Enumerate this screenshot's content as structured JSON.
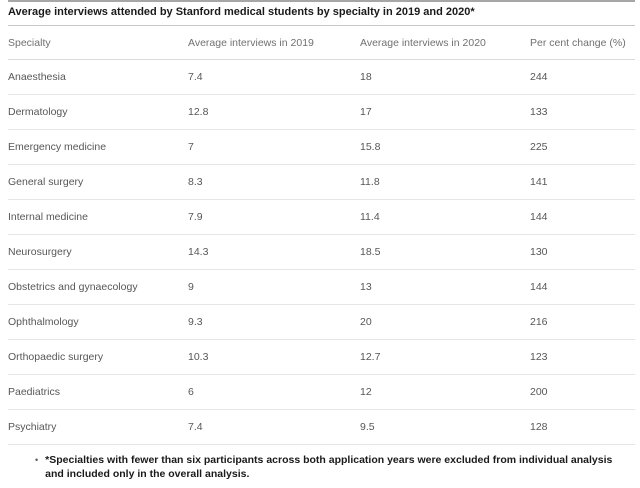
{
  "chart_data": {
    "type": "table",
    "title": "Average interviews attended by Stanford medical students by specialty in 2019 and 2020*",
    "columns": [
      "Specialty",
      "Average interviews in 2019",
      "Average interviews in 2020",
      "Per cent change (%)"
    ],
    "rows": [
      [
        "Anaesthesia",
        "7.4",
        "18",
        "244"
      ],
      [
        "Dermatology",
        "12.8",
        "17",
        "133"
      ],
      [
        "Emergency medicine",
        "7",
        "15.8",
        "225"
      ],
      [
        "General surgery",
        "8.3",
        "11.8",
        "141"
      ],
      [
        "Internal medicine",
        "7.9",
        "11.4",
        "144"
      ],
      [
        "Neurosurgery",
        "14.3",
        "18.5",
        "130"
      ],
      [
        "Obstetrics and gynaecology",
        "9",
        "13",
        "144"
      ],
      [
        "Ophthalmology",
        "9.3",
        "20",
        "216"
      ],
      [
        "Orthopaedic surgery",
        "10.3",
        "12.7",
        "123"
      ],
      [
        "Paediatrics",
        "6",
        "12",
        "200"
      ],
      [
        "Psychiatry",
        "7.4",
        "9.5",
        "128"
      ]
    ],
    "footnote": "*Specialties with fewer than six participants across both application years were excluded from individual analysis and included only in the overall analysis."
  },
  "footnote": {
    "bullet": "•",
    "marker": "*",
    "text": "Specialties with fewer than six participants across both application years were excluded from individual analysis and included only in the overall analysis."
  },
  "colors": {
    "top_rule": "#a6a6a6",
    "title_rule": "#c9c9c9",
    "header_divider": "#d9d9d9",
    "row_divider": "#e6e6e6",
    "title_text": "#1a1a1a",
    "header_text": "#707070",
    "cell_text": "#575757",
    "background": "#ffffff"
  }
}
